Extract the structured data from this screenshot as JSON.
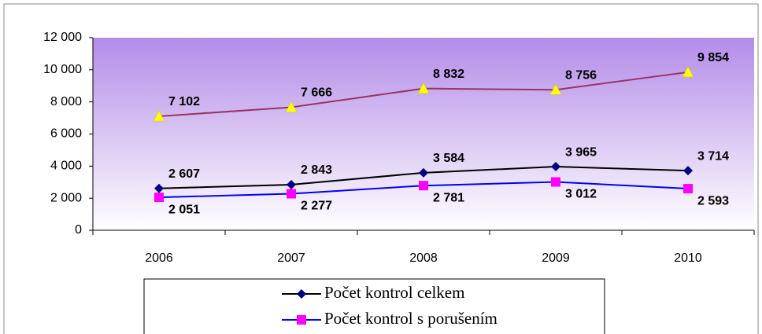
{
  "chart_data": {
    "type": "line",
    "categories": [
      "2006",
      "2007",
      "2008",
      "2009",
      "2010"
    ],
    "series": [
      {
        "name": "Počet kontrol celkem",
        "color": "#000000",
        "marker_color": "#000080",
        "marker": "diamond",
        "values": [
          2607,
          2843,
          3584,
          3965,
          3714
        ],
        "value_labels": [
          "2 607",
          "2 843",
          "3 584",
          "3 965",
          "3 714"
        ]
      },
      {
        "name": "Počet kontrol s porušením",
        "color": "#0000ff",
        "marker_color": "#ff00ff",
        "marker": "square",
        "values": [
          2051,
          2277,
          2781,
          3012,
          2593
        ],
        "value_labels": [
          "2 051",
          "2 277",
          "2 781",
          "3 012",
          "2 593"
        ]
      },
      {
        "color": "#993366",
        "marker_color": "#ffff00",
        "marker": "triangle",
        "values": [
          7102,
          7666,
          8832,
          8756,
          9854
        ],
        "value_labels": [
          "7 102",
          "7 666",
          "8 832",
          "8 756",
          "9 854"
        ]
      }
    ],
    "ylim": [
      0,
      12000
    ],
    "yticks": [
      {
        "value": 0,
        "label": "0"
      },
      {
        "value": 2000,
        "label": "2 000"
      },
      {
        "value": 4000,
        "label": "4 000"
      },
      {
        "value": 6000,
        "label": "6 000"
      },
      {
        "value": 8000,
        "label": "8 000"
      },
      {
        "value": 10000,
        "label": "10 000"
      },
      {
        "value": 12000,
        "label": "12 000"
      }
    ],
    "grid": true
  }
}
